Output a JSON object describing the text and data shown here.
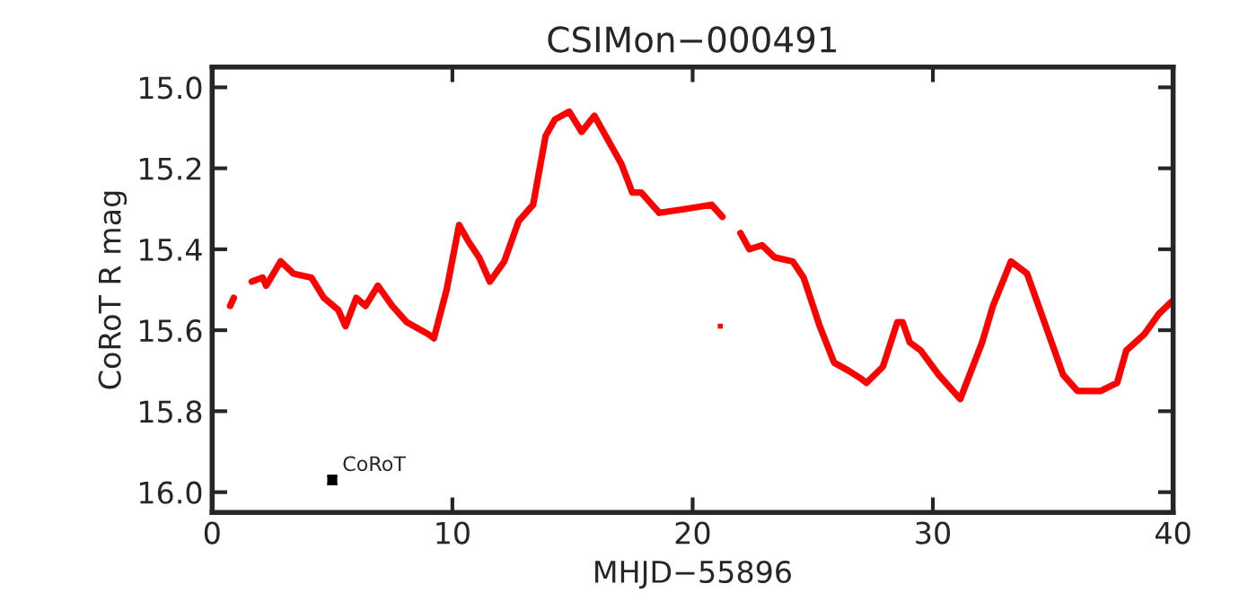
{
  "chart_data": {
    "type": "line",
    "title": "CSIMon−000491",
    "xlabel": "MHJD−55896",
    "ylabel": "CoRoT R mag",
    "xlim": [
      0,
      40
    ],
    "xticks": [
      0,
      10,
      20,
      30,
      40
    ],
    "ylim": [
      16.05,
      14.95
    ],
    "yticks": [
      {
        "value": 15.0,
        "label": "15.0"
      },
      {
        "value": 15.2,
        "label": "15.2"
      },
      {
        "value": 15.4,
        "label": "15.4"
      },
      {
        "value": 15.6,
        "label": "15.6"
      },
      {
        "value": 15.8,
        "label": "15.8"
      },
      {
        "value": 16.0,
        "label": "16.0"
      }
    ],
    "grid": false,
    "legend": false,
    "series": [
      {
        "color": "#ff0000",
        "x": [
          0.75,
          0.9,
          1.2,
          1.65,
          2.1,
          2.25,
          2.85,
          3.38,
          4.13,
          4.65,
          5.25,
          5.55,
          6.0,
          6.38,
          6.9,
          7.5,
          8.1,
          9.0,
          9.23,
          9.76,
          10.28,
          10.66,
          11.11,
          11.56,
          12.16,
          12.76,
          13.36,
          13.88,
          14.26,
          14.86,
          15.38,
          15.91,
          17.04,
          17.49,
          17.86,
          18.61,
          19.74,
          20.79,
          21.24,
          21.6,
          21.99,
          22.36,
          22.89,
          23.41,
          24.17,
          24.62,
          25.29,
          25.89,
          26.49,
          27.02,
          27.24,
          27.92,
          28.52,
          28.74,
          29.04,
          29.49,
          30.24,
          31.14,
          32.05,
          32.5,
          33.25,
          33.92,
          34.52,
          35.42,
          36.02,
          36.99,
          37.67,
          38.05,
          38.8,
          39.4,
          39.92
        ],
        "values": [
          15.54,
          15.52,
          null,
          15.48,
          15.47,
          15.49,
          15.43,
          15.46,
          15.47,
          15.52,
          15.55,
          15.59,
          15.52,
          15.54,
          15.49,
          15.54,
          15.58,
          15.61,
          15.62,
          15.5,
          15.34,
          15.38,
          15.42,
          15.48,
          15.43,
          15.33,
          15.29,
          15.12,
          15.08,
          15.06,
          15.11,
          15.07,
          15.19,
          15.26,
          15.26,
          15.31,
          15.3,
          15.29,
          15.32,
          null,
          15.36,
          15.4,
          15.39,
          15.42,
          15.43,
          15.47,
          15.59,
          15.68,
          15.7,
          15.72,
          15.73,
          15.69,
          15.58,
          15.58,
          15.63,
          15.65,
          15.71,
          15.77,
          15.63,
          15.54,
          15.43,
          15.46,
          15.56,
          15.71,
          15.75,
          15.75,
          15.73,
          15.65,
          15.61,
          15.56,
          15.53
        ]
      },
      {
        "type": "scatter",
        "color": "#ff0000",
        "x": [
          21.15
        ],
        "values": [
          15.59
        ]
      },
      {
        "type": "scatter",
        "color": "#000000",
        "x": [
          5.0
        ],
        "values": [
          15.97
        ],
        "errors": [
          0.01
        ]
      }
    ],
    "annotations": [
      {
        "text": "CoRoT",
        "x": 5.0,
        "y": 15.97
      }
    ]
  }
}
